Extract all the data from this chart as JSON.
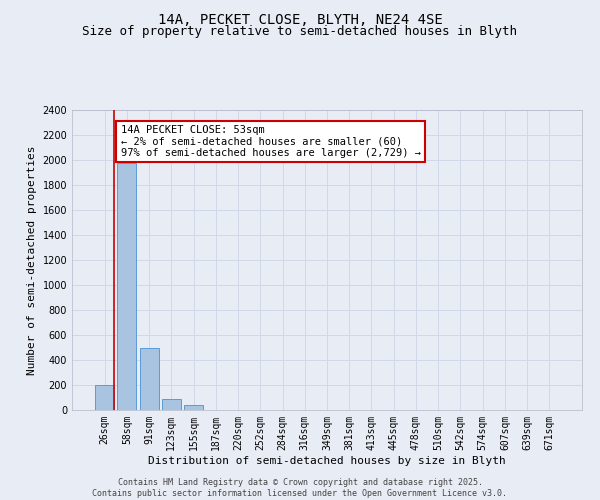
{
  "title": "14A, PECKET CLOSE, BLYTH, NE24 4SE",
  "subtitle": "Size of property relative to semi-detached houses in Blyth",
  "xlabel": "Distribution of semi-detached houses by size in Blyth",
  "ylabel": "Number of semi-detached properties",
  "categories": [
    "26sqm",
    "58sqm",
    "91sqm",
    "123sqm",
    "155sqm",
    "187sqm",
    "220sqm",
    "252sqm",
    "284sqm",
    "316sqm",
    "349sqm",
    "381sqm",
    "413sqm",
    "445sqm",
    "478sqm",
    "510sqm",
    "542sqm",
    "574sqm",
    "607sqm",
    "639sqm",
    "671sqm"
  ],
  "values": [
    200,
    1980,
    500,
    90,
    38,
    0,
    0,
    0,
    0,
    0,
    0,
    0,
    0,
    0,
    0,
    0,
    0,
    0,
    0,
    0,
    0
  ],
  "bar_color": "#a8c4e0",
  "bar_edge_color": "#5b9bd5",
  "annotation_title": "14A PECKET CLOSE: 53sqm",
  "annotation_line1": "← 2% of semi-detached houses are smaller (60)",
  "annotation_line2": "97% of semi-detached houses are larger (2,729) →",
  "annotation_box_color": "#ffffff",
  "annotation_box_edge_color": "#cc0000",
  "annotation_text_color": "#000000",
  "vline_color": "#cc0000",
  "ylim": [
    0,
    2400
  ],
  "yticks": [
    0,
    200,
    400,
    600,
    800,
    1000,
    1200,
    1400,
    1600,
    1800,
    2000,
    2200,
    2400
  ],
  "grid_color": "#d0d8e8",
  "background_color": "#e8ecf4",
  "footer": "Contains HM Land Registry data © Crown copyright and database right 2025.\nContains public sector information licensed under the Open Government Licence v3.0.",
  "title_fontsize": 10,
  "subtitle_fontsize": 9,
  "axis_label_fontsize": 8,
  "tick_fontsize": 7,
  "annotation_fontsize": 7.5,
  "footer_fontsize": 6
}
